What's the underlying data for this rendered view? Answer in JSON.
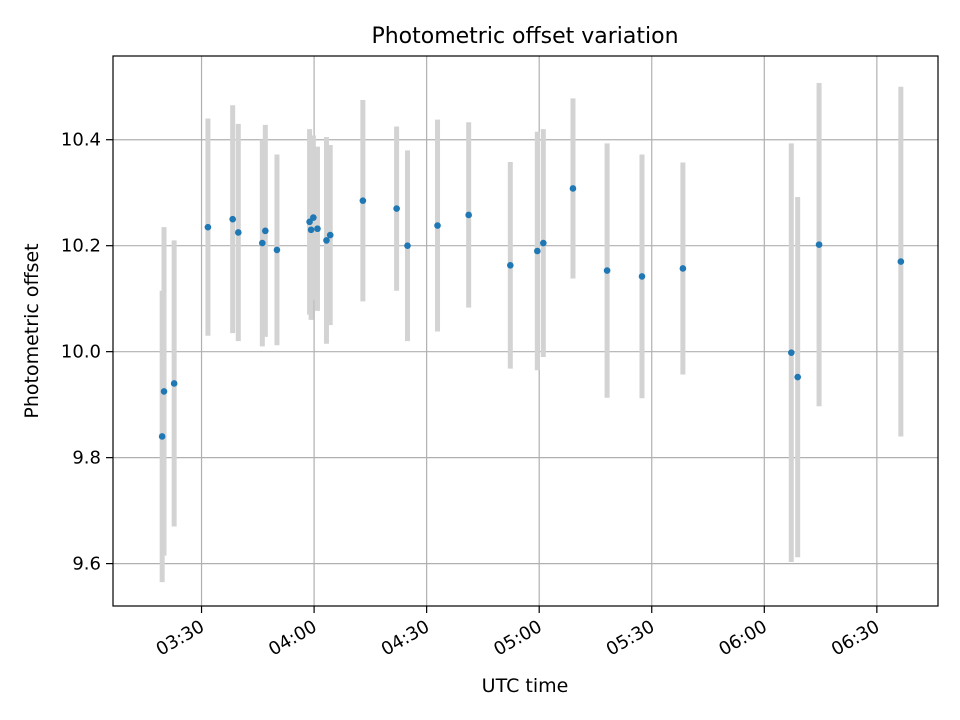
{
  "chart_data": {
    "type": "scatter",
    "title": "Photometric offset variation",
    "xlabel": "UTC time",
    "ylabel": "Photometric offset",
    "x_ticks": [
      "03:30",
      "04:00",
      "04:30",
      "05:00",
      "05:30",
      "06:00",
      "06:30"
    ],
    "x_tick_minutes": [
      210,
      240,
      270,
      300,
      330,
      360,
      390
    ],
    "y_ticks": [
      "9.6",
      "9.8",
      "10.0",
      "10.2",
      "10.4"
    ],
    "y_tick_values": [
      9.6,
      9.8,
      10.0,
      10.2,
      10.4
    ],
    "xlim": [
      186.4,
      406.3
    ],
    "ylim": [
      9.52,
      10.558
    ],
    "grid": true,
    "colors": {
      "point": "#1f77b4",
      "errorbar": "#d3d3d3",
      "grid": "#b0b0b0"
    },
    "points": [
      {
        "x": 199.5,
        "y": 9.84,
        "err": 0.275
      },
      {
        "x": 200.0,
        "y": 9.925,
        "err": 0.31
      },
      {
        "x": 202.7,
        "y": 9.94,
        "err": 0.27
      },
      {
        "x": 211.7,
        "y": 10.235,
        "err": 0.205
      },
      {
        "x": 218.3,
        "y": 10.25,
        "err": 0.215
      },
      {
        "x": 219.8,
        "y": 10.225,
        "err": 0.205
      },
      {
        "x": 226.2,
        "y": 10.205,
        "err": 0.195
      },
      {
        "x": 227.0,
        "y": 10.228,
        "err": 0.2
      },
      {
        "x": 230.1,
        "y": 10.192,
        "err": 0.18
      },
      {
        "x": 238.8,
        "y": 10.245,
        "err": 0.175
      },
      {
        "x": 239.2,
        "y": 10.23,
        "err": 0.17
      },
      {
        "x": 239.8,
        "y": 10.253,
        "err": 0.155
      },
      {
        "x": 240.9,
        "y": 10.232,
        "err": 0.155
      },
      {
        "x": 243.3,
        "y": 10.21,
        "err": 0.195
      },
      {
        "x": 244.3,
        "y": 10.22,
        "err": 0.17
      },
      {
        "x": 253.0,
        "y": 10.285,
        "err": 0.19
      },
      {
        "x": 262.0,
        "y": 10.27,
        "err": 0.155
      },
      {
        "x": 264.9,
        "y": 10.2,
        "err": 0.18
      },
      {
        "x": 272.9,
        "y": 10.238,
        "err": 0.2
      },
      {
        "x": 281.2,
        "y": 10.258,
        "err": 0.175
      },
      {
        "x": 292.3,
        "y": 10.163,
        "err": 0.195
      },
      {
        "x": 299.5,
        "y": 10.19,
        "err": 0.225
      },
      {
        "x": 301.1,
        "y": 10.205,
        "err": 0.215
      },
      {
        "x": 309.0,
        "y": 10.308,
        "err": 0.17
      },
      {
        "x": 318.1,
        "y": 10.153,
        "err": 0.24
      },
      {
        "x": 327.4,
        "y": 10.142,
        "err": 0.23
      },
      {
        "x": 338.3,
        "y": 10.157,
        "err": 0.2
      },
      {
        "x": 367.2,
        "y": 9.998,
        "err": 0.395
      },
      {
        "x": 368.9,
        "y": 9.952,
        "err": 0.34
      },
      {
        "x": 374.6,
        "y": 10.202,
        "err": 0.305
      },
      {
        "x": 396.4,
        "y": 10.17,
        "err": 0.33
      }
    ]
  }
}
